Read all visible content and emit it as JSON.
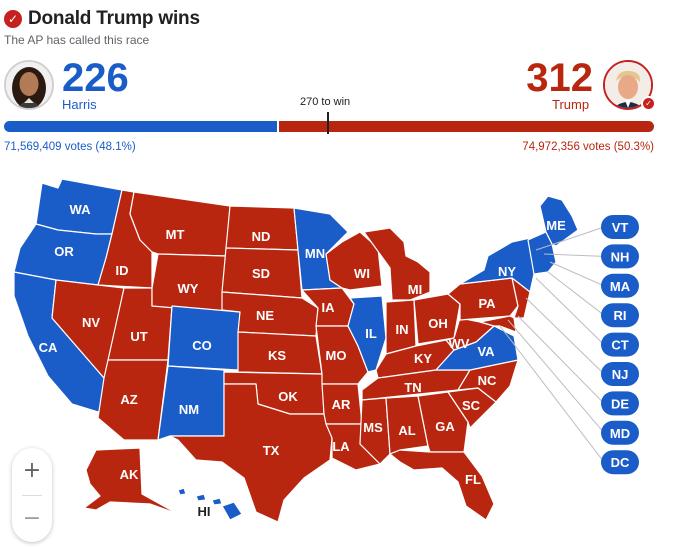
{
  "header": {
    "title": "Donald Trump wins",
    "subtitle": "The AP has called this race",
    "check_symbol": "✓"
  },
  "democrat": {
    "name": "Harris",
    "electoral_votes": "226",
    "votes_text": "71,569,409 votes (48.1%)",
    "color": "#1a5dc8"
  },
  "republican": {
    "name": "Trump",
    "electoral_votes": "312",
    "votes_text": "74,972,356 votes (50.3%)",
    "color": "#b9260f"
  },
  "threshold": {
    "label": "270 to win"
  },
  "bar": {
    "dem_share": 0.42,
    "rep_share": 0.58
  },
  "map": {
    "dem_states": [
      "WA",
      "OR",
      "CA",
      "CO",
      "NM",
      "MN",
      "IL",
      "VA",
      "NY",
      "ME",
      "HI"
    ],
    "rep_states": [
      "MT",
      "ND",
      "ID",
      "SD",
      "WY",
      "NE",
      "NV",
      "UT",
      "KS",
      "OK",
      "TX",
      "AZ",
      "IA",
      "MO",
      "AR",
      "LA",
      "WI",
      "MI",
      "IN",
      "OH",
      "KY",
      "TN",
      "MS",
      "AL",
      "GA",
      "FL",
      "SC",
      "NC",
      "WV",
      "PA",
      "AK"
    ],
    "state_labels": {
      "WA": "WA",
      "OR": "OR",
      "CA": "CA",
      "ID": "ID",
      "NV": "NV",
      "UT": "UT",
      "AZ": "AZ",
      "MT": "MT",
      "WY": "WY",
      "CO": "CO",
      "NM": "NM",
      "ND": "ND",
      "SD": "SD",
      "NE": "NE",
      "KS": "KS",
      "OK": "OK",
      "TX": "TX",
      "MN": "MN",
      "IA": "IA",
      "MO": "MO",
      "AR": "AR",
      "LA": "LA",
      "WI": "WI",
      "IL": "IL",
      "MI": "MI",
      "IN": "IN",
      "OH": "OH",
      "KY": "KY",
      "TN": "TN",
      "MS": "MS",
      "AL": "AL",
      "GA": "GA",
      "FL": "FL",
      "SC": "SC",
      "NC": "NC",
      "VA": "VA",
      "WV": "WV",
      "PA": "PA",
      "NY": "NY",
      "ME": "ME",
      "AK": "AK",
      "HI": "HI"
    },
    "small_states": [
      {
        "code": "VT",
        "party": "dem"
      },
      {
        "code": "NH",
        "party": "dem"
      },
      {
        "code": "MA",
        "party": "dem"
      },
      {
        "code": "RI",
        "party": "dem"
      },
      {
        "code": "CT",
        "party": "dem"
      },
      {
        "code": "NJ",
        "party": "dem"
      },
      {
        "code": "DE",
        "party": "dem"
      },
      {
        "code": "MD",
        "party": "dem"
      },
      {
        "code": "DC",
        "party": "dem"
      }
    ]
  },
  "zoom": {
    "in_symbol": "+",
    "out_symbol": "−"
  }
}
